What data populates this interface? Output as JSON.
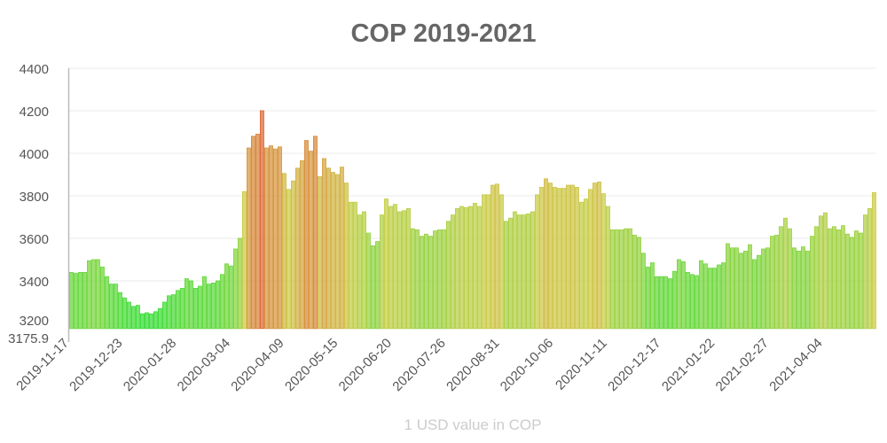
{
  "chart_data": {
    "type": "bar",
    "title": "COP 2019-2021",
    "xlabel": "1 USD value in COP",
    "ylabel": "",
    "ylim": [
      3175.9,
      4400
    ],
    "y_ticks": [
      "3175.9",
      "3200",
      "3400",
      "3600",
      "3800",
      "4000",
      "4200",
      "4400"
    ],
    "x_ticks": [
      "2019-11-17",
      "2019-12-23",
      "2020-01-28",
      "2020-03-04",
      "2020-04-09",
      "2020-05-15",
      "2020-06-20",
      "2020-07-26",
      "2020-08-31",
      "2020-10-06",
      "2020-11-11",
      "2020-12-17",
      "2021-01-22",
      "2021-02-27",
      "2021-04-04"
    ],
    "grid": true,
    "color_scale": {
      "low": "#33dd33",
      "mid": "#cccc44",
      "high": "#dd6633"
    },
    "values": [
      3440,
      3435,
      3440,
      3440,
      3495,
      3500,
      3500,
      3465,
      3420,
      3385,
      3385,
      3345,
      3320,
      3300,
      3280,
      3285,
      3245,
      3250,
      3245,
      3255,
      3270,
      3300,
      3330,
      3335,
      3355,
      3365,
      3410,
      3400,
      3365,
      3375,
      3420,
      3385,
      3390,
      3400,
      3430,
      3480,
      3470,
      3550,
      3600,
      3820,
      4025,
      4080,
      4090,
      4200,
      4025,
      4035,
      4020,
      4030,
      3905,
      3830,
      3870,
      3930,
      3965,
      4060,
      4010,
      4080,
      3890,
      3975,
      3930,
      3910,
      3900,
      3935,
      3860,
      3770,
      3770,
      3710,
      3725,
      3625,
      3565,
      3585,
      3710,
      3785,
      3750,
      3760,
      3725,
      3730,
      3740,
      3645,
      3640,
      3610,
      3620,
      3610,
      3635,
      3640,
      3640,
      3680,
      3710,
      3740,
      3750,
      3745,
      3750,
      3765,
      3750,
      3805,
      3805,
      3850,
      3855,
      3805,
      3680,
      3695,
      3725,
      3710,
      3710,
      3715,
      3725,
      3805,
      3840,
      3880,
      3860,
      3840,
      3835,
      3835,
      3850,
      3850,
      3840,
      3770,
      3785,
      3830,
      3860,
      3865,
      3810,
      3750,
      3640,
      3640,
      3640,
      3645,
      3645,
      3615,
      3605,
      3530,
      3465,
      3485,
      3420,
      3420,
      3420,
      3410,
      3445,
      3500,
      3490,
      3440,
      3430,
      3425,
      3495,
      3480,
      3460,
      3460,
      3475,
      3485,
      3575,
      3555,
      3555,
      3530,
      3540,
      3570,
      3500,
      3520,
      3550,
      3555,
      3610,
      3615,
      3655,
      3695,
      3645,
      3555,
      3540,
      3560,
      3540,
      3610,
      3655,
      3705,
      3720,
      3645,
      3655,
      3640,
      3660,
      3620,
      3605,
      3635,
      3625,
      3710,
      3740,
      3815
    ]
  }
}
